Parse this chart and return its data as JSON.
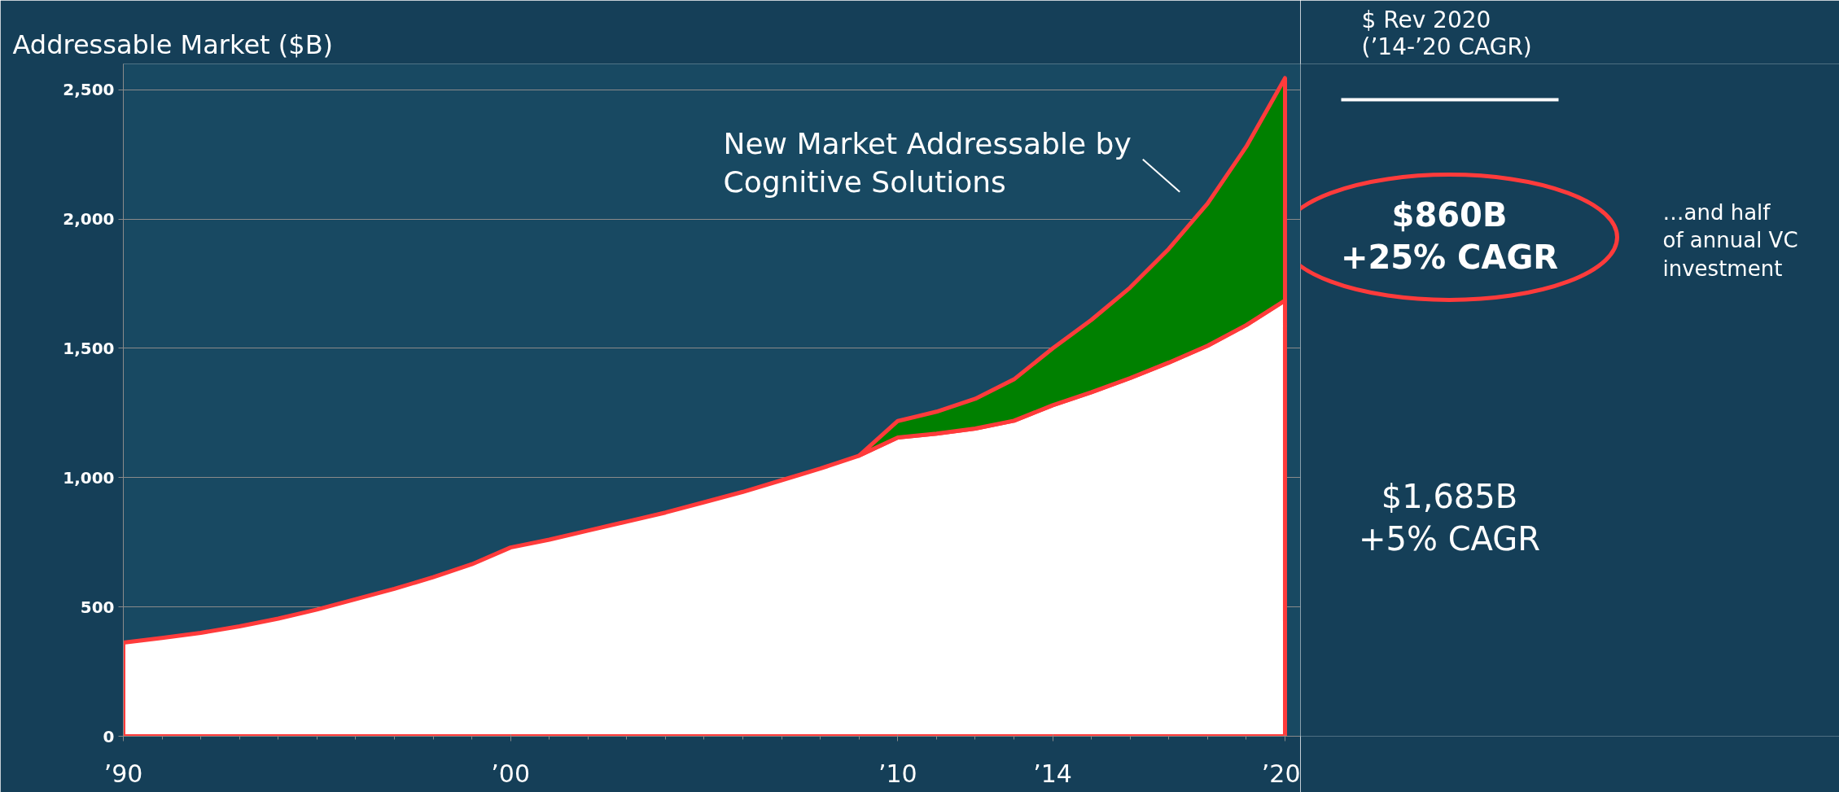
{
  "chart_data": {
    "type": "area",
    "stacked": true,
    "ylabel": "Addressable Market ($B)",
    "x": [
      1990,
      1991,
      1992,
      1993,
      1994,
      1995,
      1996,
      1997,
      1998,
      1999,
      2000,
      2001,
      2002,
      2003,
      2004,
      2005,
      2006,
      2007,
      2008,
      2009,
      2010,
      2011,
      2012,
      2013,
      2014,
      2015,
      2016,
      2017,
      2018,
      2019,
      2020
    ],
    "series": [
      {
        "color": "#ffffff",
        "values": [
          362,
          380,
          400,
          425,
          455,
          490,
          530,
          570,
          615,
          665,
          730,
          760,
          795,
          830,
          865,
          905,
          945,
          990,
          1035,
          1085,
          1155,
          1170,
          1190,
          1220,
          1280,
          1330,
          1385,
          1445,
          1510,
          1590,
          1685
        ]
      },
      {
        "color": "#008000",
        "values": [
          null,
          null,
          null,
          null,
          null,
          null,
          null,
          null,
          null,
          null,
          null,
          null,
          null,
          null,
          null,
          null,
          null,
          null,
          null,
          0,
          64,
          85,
          115,
          160,
          220,
          280,
          350,
          440,
          550,
          690,
          860
        ]
      }
    ],
    "xlim": [
      1990,
      2020.4
    ],
    "ylim": [
      0,
      2600
    ],
    "xticks": [
      {
        "value": 1990,
        "label": "’90"
      },
      {
        "value": 2000,
        "label": "’00"
      },
      {
        "value": 2010,
        "label": "’10"
      },
      {
        "value": 2014,
        "label": "’14"
      },
      {
        "value": 2020,
        "label": "’20"
      }
    ],
    "yticks": [
      0,
      500,
      {
        "value": 1000,
        "label": "1,000"
      },
      {
        "value": 1500,
        "label": "1,500"
      },
      {
        "value": 2000,
        "label": "2,000"
      },
      {
        "value": 2500,
        "label": "2,500"
      }
    ],
    "grid": "y",
    "annotations": [
      "New Market Addressable by\nCognitive Solutions",
      "$ Rev 2020\n(’14-’20 CAGR)",
      "$860B\n+25% CAGR",
      "…and half\nof annual VC\ninvestment",
      "$1,685B\n+5% CAGR"
    ]
  }
}
